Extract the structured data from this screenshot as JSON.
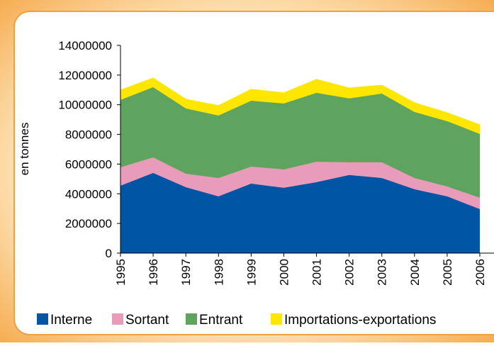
{
  "chart_data": {
    "type": "area",
    "stacked": true,
    "y_label": "en tonnes",
    "categories": [
      "1995",
      "1996",
      "1997",
      "1998",
      "1999",
      "2000",
      "2001",
      "2002",
      "2003",
      "2004",
      "2005",
      "2006"
    ],
    "series": [
      {
        "name": "Interne",
        "color": "#0055a4",
        "values": [
          4540000,
          5400000,
          4440000,
          3820000,
          4680000,
          4400000,
          4780000,
          5260000,
          5060000,
          4300000,
          3820000,
          2960000
        ]
      },
      {
        "name": "Sortant",
        "color": "#e99bba",
        "values": [
          1240000,
          1050000,
          910000,
          1240000,
          1150000,
          1240000,
          1380000,
          860000,
          1060000,
          760000,
          670000,
          770000
        ]
      },
      {
        "name": "Entrant",
        "color": "#5ea45e",
        "values": [
          4540000,
          4730000,
          4400000,
          4210000,
          4440000,
          4440000,
          4640000,
          4300000,
          4630000,
          4450000,
          4400000,
          4300000
        ]
      },
      {
        "name": "Importations-exportations",
        "color": "#ffe600",
        "values": [
          670000,
          620000,
          620000,
          670000,
          770000,
          720000,
          910000,
          710000,
          570000,
          620000,
          570000,
          620000
        ]
      }
    ],
    "ylim": [
      0,
      14000000
    ],
    "yticks": [
      0,
      2000000,
      4000000,
      6000000,
      8000000,
      10000000,
      12000000,
      14000000
    ],
    "legend": "bottom"
  }
}
